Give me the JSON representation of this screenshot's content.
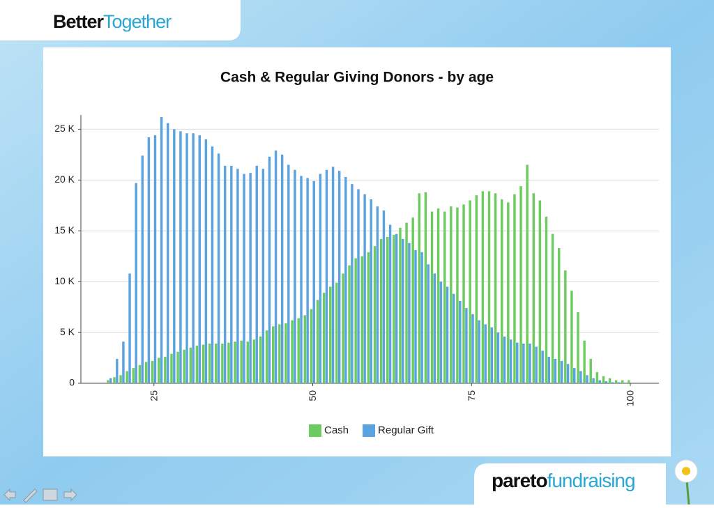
{
  "header": {
    "brand_first": "Better",
    "brand_second": "Together"
  },
  "footer": {
    "brand_first": "pareto",
    "brand_second": "fundraising"
  },
  "chart_data": {
    "type": "bar",
    "title": "Cash & Regular Giving Donors - by age",
    "x": [
      18,
      19,
      20,
      21,
      22,
      23,
      24,
      25,
      26,
      27,
      28,
      29,
      30,
      31,
      32,
      33,
      34,
      35,
      36,
      37,
      38,
      39,
      40,
      41,
      42,
      43,
      44,
      45,
      46,
      47,
      48,
      49,
      50,
      51,
      52,
      53,
      54,
      55,
      56,
      57,
      58,
      59,
      60,
      61,
      62,
      63,
      64,
      65,
      66,
      67,
      68,
      69,
      70,
      71,
      72,
      73,
      74,
      75,
      76,
      77,
      78,
      79,
      80,
      81,
      82,
      83,
      84,
      85,
      86,
      87,
      88,
      89,
      90,
      91,
      92,
      93,
      94,
      95,
      96,
      97,
      98,
      99,
      100
    ],
    "series": [
      {
        "name": "Cash",
        "color": "#6dcc5f",
        "values": [
          300,
          600,
          800,
          1200,
          1500,
          1800,
          2100,
          2200,
          2500,
          2600,
          2900,
          3100,
          3300,
          3500,
          3700,
          3800,
          3900,
          3900,
          3900,
          4000,
          4100,
          4200,
          4100,
          4300,
          4600,
          5200,
          5600,
          5800,
          5900,
          6200,
          6400,
          6700,
          7300,
          8200,
          8900,
          9500,
          9900,
          10800,
          11600,
          12300,
          12500,
          12900,
          13500,
          14200,
          14400,
          14600,
          15300,
          15800,
          16300,
          18700,
          18800,
          16900,
          17200,
          16900,
          17400,
          17300,
          17600,
          18000,
          18500,
          18900,
          18900,
          18700,
          18100,
          17800,
          18600,
          19400,
          21500,
          18700,
          18000,
          16400,
          14700,
          13300,
          11100,
          9100,
          7000,
          4200,
          2400,
          1100,
          700,
          500,
          300,
          300,
          300
        ]
      },
      {
        "name": "Regular Gift",
        "color": "#5aa3e0",
        "values": [
          500,
          2400,
          4100,
          10800,
          19700,
          22400,
          24200,
          24400,
          26200,
          25600,
          25000,
          24800,
          24600,
          24600,
          24400,
          24000,
          23300,
          22600,
          21400,
          21400,
          21100,
          20600,
          20700,
          21400,
          21100,
          22300,
          22900,
          22500,
          21500,
          21000,
          20400,
          20200,
          19900,
          20600,
          21000,
          21300,
          20900,
          20300,
          19600,
          19100,
          18600,
          18100,
          17400,
          17000,
          15600,
          14700,
          14200,
          13800,
          13100,
          12900,
          11700,
          10800,
          10000,
          9500,
          8800,
          8100,
          7400,
          6800,
          6200,
          5800,
          5500,
          5000,
          4600,
          4300,
          4000,
          3900,
          3900,
          3600,
          3200,
          2600,
          2400,
          2200,
          1900,
          1500,
          1200,
          800,
          500,
          300,
          200,
          100,
          100,
          0,
          0
        ]
      }
    ],
    "xlim": [
      13.5,
      104.5
    ],
    "xticks": [
      25,
      50,
      75,
      100
    ],
    "ylim": [
      0,
      26400
    ],
    "yticks": [
      0,
      {
        "value": 5000,
        "label": "5 K"
      },
      {
        "value": 10000,
        "label": "10 K"
      },
      {
        "value": 15000,
        "label": "15 K"
      },
      {
        "value": 20000,
        "label": "20 K"
      },
      {
        "value": 25000,
        "label": "25 K"
      }
    ],
    "grid": true,
    "legend": "bottom"
  }
}
